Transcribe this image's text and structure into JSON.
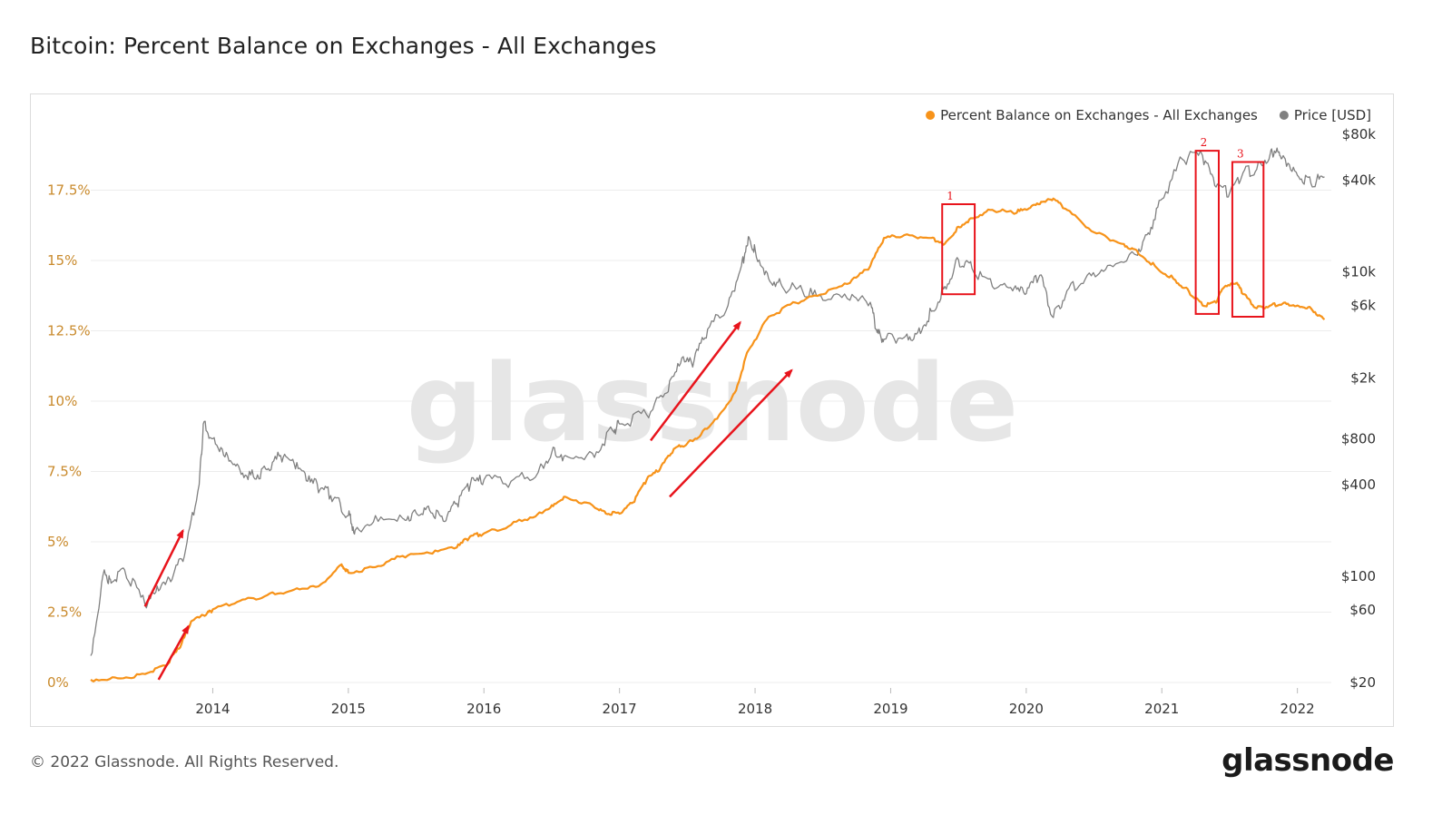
{
  "header": {
    "title": "Bitcoin: Percent Balance on Exchanges - All Exchanges"
  },
  "footer": {
    "copyright": "© 2022 Glassnode. All Rights Reserved.",
    "logo_text": "glassnode"
  },
  "watermark": "glassnode",
  "colors": {
    "balance": "#f7931a",
    "price": "#808080",
    "axis_left_text": "#c98a2c",
    "annotation": "#e8141c",
    "grid": "#ececec"
  },
  "chart_data": {
    "type": "line",
    "title": "Bitcoin: Percent Balance on Exchanges - All Exchanges",
    "x_range": [
      2013.1,
      2022.25
    ],
    "x_ticks": [
      {
        "value": 2014,
        "label": "2014"
      },
      {
        "value": 2015,
        "label": "2015"
      },
      {
        "value": 2016,
        "label": "2016"
      },
      {
        "value": 2017,
        "label": "2017"
      },
      {
        "value": 2018,
        "label": "2018"
      },
      {
        "value": 2019,
        "label": "2019"
      },
      {
        "value": 2020,
        "label": "2020"
      },
      {
        "value": 2021,
        "label": "2021"
      },
      {
        "value": 2022,
        "label": "2022"
      }
    ],
    "y_left": {
      "range": [
        0,
        19.5
      ],
      "unit": "percent",
      "ticks": [
        {
          "value": 0,
          "label": "0%"
        },
        {
          "value": 2.5,
          "label": "2.5%"
        },
        {
          "value": 5,
          "label": "5%"
        },
        {
          "value": 7.5,
          "label": "7.5%"
        },
        {
          "value": 10,
          "label": "10%"
        },
        {
          "value": 12.5,
          "label": "12.5%"
        },
        {
          "value": 15,
          "label": "15%"
        },
        {
          "value": 17.5,
          "label": "17.5%"
        }
      ]
    },
    "y_right": {
      "scale": "log",
      "range": [
        20,
        80000
      ],
      "unit": "USD",
      "ticks": [
        {
          "value": 20,
          "label": "$20"
        },
        {
          "value": 60,
          "label": "$60"
        },
        {
          "value": 100,
          "label": "$100"
        },
        {
          "value": 400,
          "label": "$400"
        },
        {
          "value": 800,
          "label": "$800"
        },
        {
          "value": 2000,
          "label": "$2k"
        },
        {
          "value": 6000,
          "label": "$6k"
        },
        {
          "value": 10000,
          "label": "$10k"
        },
        {
          "value": 40000,
          "label": "$40k"
        },
        {
          "value": 80000,
          "label": "$80k"
        }
      ]
    },
    "legend": [
      {
        "name": "Percent Balance on Exchanges - All Exchanges",
        "color": "#f7931a"
      },
      {
        "name": "Price [USD]",
        "color": "#808080"
      }
    ],
    "series": [
      {
        "name": "Percent Balance on Exchanges - All Exchanges",
        "axis": "left",
        "color": "#f7931a",
        "points": [
          [
            2013.1,
            0.1
          ],
          [
            2013.3,
            0.15
          ],
          [
            2013.5,
            0.3
          ],
          [
            2013.65,
            0.6
          ],
          [
            2013.75,
            1.2
          ],
          [
            2013.85,
            2.2
          ],
          [
            2013.95,
            2.4
          ],
          [
            2014.0,
            2.6
          ],
          [
            2014.2,
            2.9
          ],
          [
            2014.4,
            3.1
          ],
          [
            2014.6,
            3.3
          ],
          [
            2014.8,
            3.5
          ],
          [
            2014.95,
            4.2
          ],
          [
            2015.0,
            3.9
          ],
          [
            2015.2,
            4.1
          ],
          [
            2015.4,
            4.5
          ],
          [
            2015.6,
            4.6
          ],
          [
            2015.8,
            4.8
          ],
          [
            2015.9,
            5.2
          ],
          [
            2016.0,
            5.3
          ],
          [
            2016.2,
            5.6
          ],
          [
            2016.4,
            6.0
          ],
          [
            2016.5,
            6.3
          ],
          [
            2016.6,
            6.6
          ],
          [
            2016.8,
            6.3
          ],
          [
            2016.9,
            6.0
          ],
          [
            2017.0,
            6.0
          ],
          [
            2017.1,
            6.4
          ],
          [
            2017.2,
            7.2
          ],
          [
            2017.3,
            7.6
          ],
          [
            2017.4,
            8.3
          ],
          [
            2017.5,
            8.5
          ],
          [
            2017.6,
            8.8
          ],
          [
            2017.75,
            9.6
          ],
          [
            2017.85,
            10.3
          ],
          [
            2017.95,
            11.8
          ],
          [
            2018.1,
            13.0
          ],
          [
            2018.3,
            13.5
          ],
          [
            2018.5,
            13.8
          ],
          [
            2018.7,
            14.2
          ],
          [
            2018.85,
            14.8
          ],
          [
            2018.95,
            15.8
          ],
          [
            2019.1,
            15.9
          ],
          [
            2019.3,
            15.8
          ],
          [
            2019.4,
            15.6
          ],
          [
            2019.5,
            16.2
          ],
          [
            2019.6,
            16.5
          ],
          [
            2019.75,
            16.8
          ],
          [
            2019.9,
            16.7
          ],
          [
            2020.0,
            16.8
          ],
          [
            2020.1,
            17.0
          ],
          [
            2020.2,
            17.2
          ],
          [
            2020.3,
            16.8
          ],
          [
            2020.5,
            16.0
          ],
          [
            2020.7,
            15.6
          ],
          [
            2020.8,
            15.4
          ],
          [
            2020.95,
            14.8
          ],
          [
            2021.1,
            14.3
          ],
          [
            2021.2,
            13.9
          ],
          [
            2021.3,
            13.4
          ],
          [
            2021.4,
            13.5
          ],
          [
            2021.45,
            14.0
          ],
          [
            2021.55,
            14.2
          ],
          [
            2021.6,
            13.8
          ],
          [
            2021.7,
            13.3
          ],
          [
            2021.8,
            13.4
          ],
          [
            2021.9,
            13.5
          ],
          [
            2022.0,
            13.4
          ],
          [
            2022.1,
            13.3
          ],
          [
            2022.2,
            12.9
          ]
        ]
      },
      {
        "name": "Price [USD]",
        "axis": "right",
        "color": "#808080",
        "points": [
          [
            2013.1,
            30
          ],
          [
            2013.2,
            110
          ],
          [
            2013.25,
            90
          ],
          [
            2013.35,
            110
          ],
          [
            2013.5,
            65
          ],
          [
            2013.6,
            80
          ],
          [
            2013.7,
            95
          ],
          [
            2013.8,
            150
          ],
          [
            2013.9,
            400
          ],
          [
            2013.93,
            1000
          ],
          [
            2014.0,
            800
          ],
          [
            2014.1,
            650
          ],
          [
            2014.2,
            500
          ],
          [
            2014.3,
            450
          ],
          [
            2014.4,
            500
          ],
          [
            2014.5,
            620
          ],
          [
            2014.6,
            550
          ],
          [
            2014.7,
            420
          ],
          [
            2014.8,
            380
          ],
          [
            2014.9,
            330
          ],
          [
            2015.0,
            250
          ],
          [
            2015.05,
            200
          ],
          [
            2015.2,
            250
          ],
          [
            2015.4,
            240
          ],
          [
            2015.5,
            260
          ],
          [
            2015.6,
            270
          ],
          [
            2015.7,
            230
          ],
          [
            2015.8,
            300
          ],
          [
            2015.9,
            400
          ],
          [
            2016.0,
            430
          ],
          [
            2016.2,
            420
          ],
          [
            2016.4,
            480
          ],
          [
            2016.5,
            650
          ],
          [
            2016.6,
            620
          ],
          [
            2016.8,
            640
          ],
          [
            2016.95,
            900
          ],
          [
            2017.0,
            1000
          ],
          [
            2017.2,
            1150
          ],
          [
            2017.35,
            1600
          ],
          [
            2017.45,
            2500
          ],
          [
            2017.55,
            2600
          ],
          [
            2017.65,
            4200
          ],
          [
            2017.8,
            6000
          ],
          [
            2017.9,
            11000
          ],
          [
            2017.95,
            17000
          ],
          [
            2018.0,
            14000
          ],
          [
            2018.1,
            9000
          ],
          [
            2018.2,
            8000
          ],
          [
            2018.35,
            7500
          ],
          [
            2018.5,
            6500
          ],
          [
            2018.7,
            6500
          ],
          [
            2018.85,
            6300
          ],
          [
            2018.9,
            4000
          ],
          [
            2018.95,
            3600
          ],
          [
            2019.1,
            3700
          ],
          [
            2019.2,
            4000
          ],
          [
            2019.3,
            5500
          ],
          [
            2019.4,
            8000
          ],
          [
            2019.5,
            12000
          ],
          [
            2019.6,
            10500
          ],
          [
            2019.75,
            8000
          ],
          [
            2019.9,
            7500
          ],
          [
            2020.0,
            7200
          ],
          [
            2020.1,
            9500
          ],
          [
            2020.2,
            5000
          ],
          [
            2020.3,
            7500
          ],
          [
            2020.45,
            9500
          ],
          [
            2020.6,
            11000
          ],
          [
            2020.8,
            13000
          ],
          [
            2020.9,
            18000
          ],
          [
            2021.0,
            30000
          ],
          [
            2021.15,
            55000
          ],
          [
            2021.3,
            58000
          ],
          [
            2021.4,
            36000
          ],
          [
            2021.5,
            33000
          ],
          [
            2021.6,
            45000
          ],
          [
            2021.7,
            47000
          ],
          [
            2021.8,
            60000
          ],
          [
            2021.85,
            65000
          ],
          [
            2021.9,
            57000
          ],
          [
            2022.0,
            43000
          ],
          [
            2022.1,
            38000
          ],
          [
            2022.2,
            42000
          ]
        ]
      }
    ],
    "annotations": {
      "boxes": [
        {
          "label": "1",
          "x0": 2019.38,
          "x1": 2019.62,
          "y0_pct": 13.8,
          "y1_pct": 17.0
        },
        {
          "label": "2",
          "x0": 2021.25,
          "x1": 2021.42,
          "y0_pct": 13.1,
          "y1_pct": 18.9
        },
        {
          "label": "3",
          "x0": 2021.52,
          "x1": 2021.75,
          "y0_pct": 13.0,
          "y1_pct": 18.5
        }
      ],
      "arrows": [
        {
          "x0": 2013.5,
          "y0_pct": 2.7,
          "x1": 2013.78,
          "y1_pct": 5.4
        },
        {
          "x0": 2013.6,
          "y0_pct": 0.1,
          "x1": 2013.82,
          "y1_pct": 2.0
        },
        {
          "x0": 2017.23,
          "y0_pct": 8.6,
          "x1": 2017.89,
          "y1_pct": 12.8
        },
        {
          "x0": 2017.37,
          "y0_pct": 6.6,
          "x1": 2018.27,
          "y1_pct": 11.1
        }
      ]
    }
  }
}
